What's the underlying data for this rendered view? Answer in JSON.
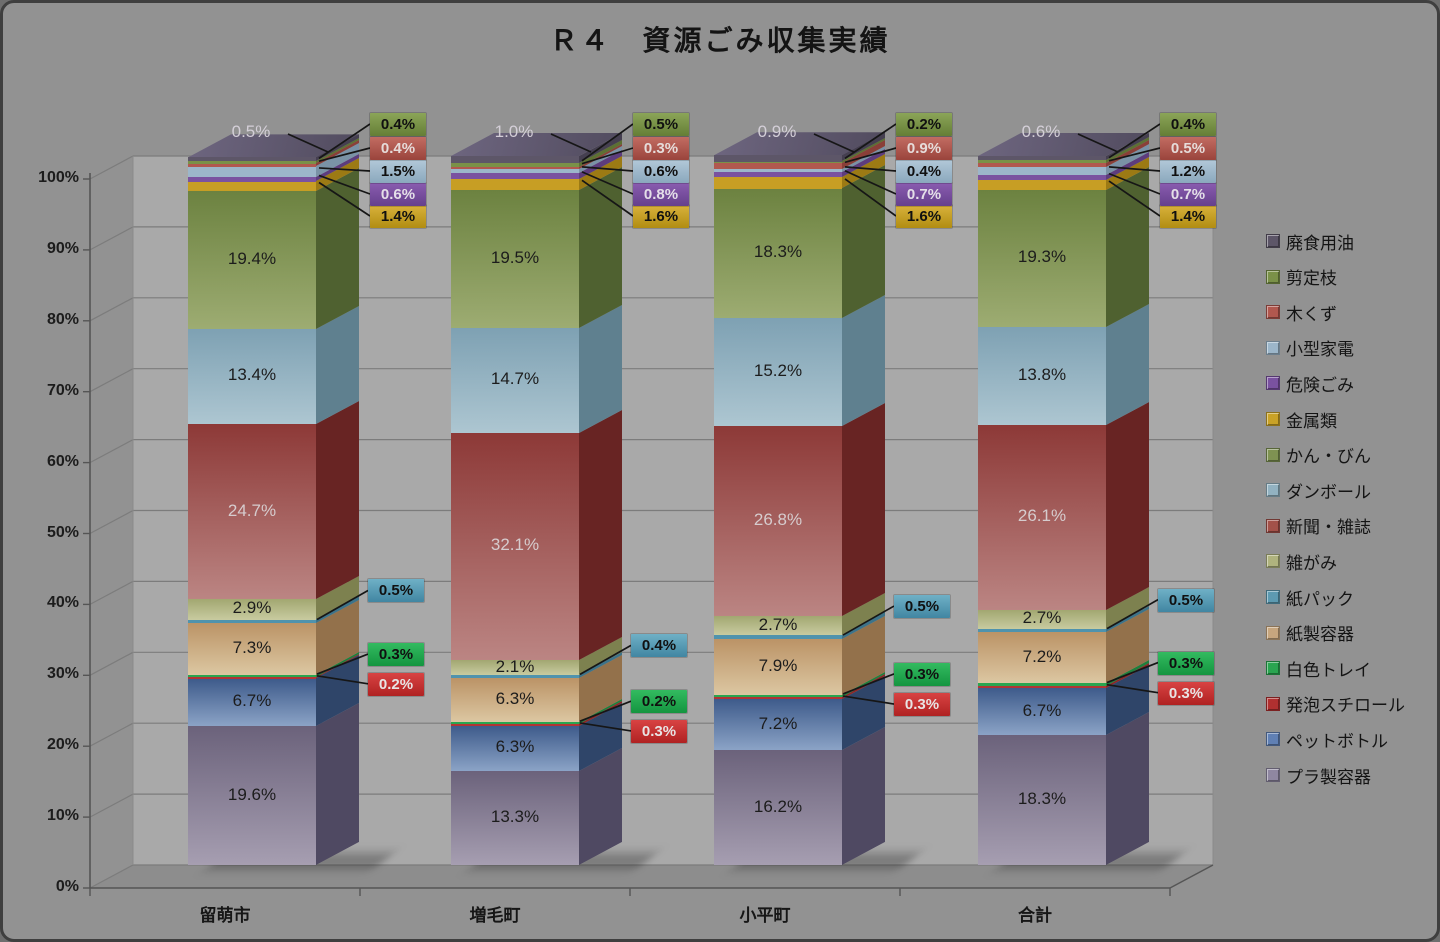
{
  "frame": {
    "background": "#929292",
    "border_color": "#3f3f3f"
  },
  "chart_data": {
    "type": "bar",
    "variant": "3d-100pct-stacked-column",
    "title": "Ｒ４　資源ごみ収集実績",
    "categories": [
      "留萌市",
      "増毛町",
      "小平町",
      "合計"
    ],
    "y_ticks": [
      "0%",
      "10%",
      "20%",
      "30%",
      "40%",
      "50%",
      "60%",
      "70%",
      "80%",
      "90%",
      "100%"
    ],
    "ylim": [
      0,
      100
    ],
    "grid": "on",
    "legend_position": "right",
    "legend_top_to_bottom": [
      "廃食用油",
      "剪定枝",
      "木くず",
      "小型家電",
      "危険ごみ",
      "金属類",
      "かん・びん",
      "ダンボール",
      "新聞・雑誌",
      "雑がみ",
      "紙パック",
      "紙製容器",
      "白色トレイ",
      "発泡スチロール",
      "ペットボトル",
      "プラ製容器"
    ],
    "series_bottom_to_top": [
      {
        "name": "プラ製容器",
        "values": [
          19.6,
          13.3,
          16.2,
          18.3
        ],
        "label_placement": "inside",
        "colors": {
          "front": [
            "#6b627b",
            "#a69eb1"
          ],
          "side": "#4f4962",
          "legend": "#8f87a1"
        }
      },
      {
        "name": "ペットボトル",
        "values": [
          6.7,
          6.3,
          7.2,
          6.7
        ],
        "label_placement": "inside",
        "colors": {
          "front": [
            "#3e5b8b",
            "#8ba3c6"
          ],
          "side": "#2f4569",
          "legend": "#6080b4"
        }
      },
      {
        "name": "発泡スチロール",
        "values": [
          0.2,
          0.3,
          0.3,
          0.3
        ],
        "label_placement": "callout-side",
        "callout_dy": 6,
        "colors": {
          "front": [
            "#b23434",
            "#b23434"
          ],
          "side": "#8c2626",
          "legend": "#b03030",
          "box": [
            "#d84343",
            "#b02222"
          ],
          "box_text": "#e8e4e4"
        }
      },
      {
        "name": "白色トレイ",
        "values": [
          0.3,
          0.2,
          0.3,
          0.3
        ],
        "label_placement": "callout-side",
        "callout_dy": -22,
        "colors": {
          "front": [
            "#2aa550",
            "#2aa550"
          ],
          "side": "#1f7f3c",
          "legend": "#2aa550",
          "box": [
            "#33bb60",
            "#149540"
          ],
          "box_text": "#101010"
        }
      },
      {
        "name": "紙製容器",
        "values": [
          7.3,
          6.3,
          7.9,
          7.2
        ],
        "label_placement": "inside",
        "colors": {
          "front": [
            "#bb9366",
            "#dcc7a2"
          ],
          "side": "#93714b",
          "legend": "#c7a67e"
        }
      },
      {
        "name": "紙パック",
        "values": [
          0.5,
          0.4,
          0.5,
          0.5
        ],
        "label_placement": "callout-side",
        "callout_dy": -31,
        "colors": {
          "front": [
            "#4f93ad",
            "#4f93ad"
          ],
          "side": "#3d7389",
          "legend": "#5d9ab1",
          "box": [
            "#6fb0c6",
            "#4186a2"
          ],
          "box_text": "#101010"
        }
      },
      {
        "name": "雑がみ",
        "values": [
          2.9,
          2.1,
          2.7,
          2.7
        ],
        "label_placement": "inside",
        "colors": {
          "front": [
            "#a2a771",
            "#c8cba0"
          ],
          "side": "#7d814f",
          "legend": "#afb37e"
        }
      },
      {
        "name": "新聞・雑誌",
        "values": [
          24.7,
          32.1,
          26.8,
          26.1
        ],
        "label_placement": "inside",
        "label_color": "#d6ccce",
        "colors": {
          "front": [
            "#8d3937",
            "#bb8583"
          ],
          "side": "#682423",
          "legend": "#a35149"
        }
      },
      {
        "name": "ダンボール",
        "values": [
          13.4,
          14.7,
          15.2,
          13.8
        ],
        "label_placement": "inside",
        "colors": {
          "front": [
            "#7ea1b3",
            "#adc6d1"
          ],
          "side": "#5f808f",
          "legend": "#92b2c1"
        }
      },
      {
        "name": "かん・びん",
        "values": [
          19.4,
          19.5,
          18.3,
          19.3
        ],
        "label_placement": "inside",
        "colors": {
          "front": [
            "#6c8240",
            "#9dac72"
          ],
          "side": "#4f6130",
          "legend": "#7f9252"
        }
      },
      {
        "name": "金属類",
        "values": [
          1.4,
          1.6,
          1.6,
          1.4
        ],
        "label_placement": "callout-top",
        "callout_slot": 4,
        "colors": {
          "front": [
            "#c79e24",
            "#c79e24"
          ],
          "side": "#9c7a14",
          "legend": "#c9a227",
          "box": [
            "#d9b23c",
            "#b18d12"
          ],
          "box_text": "#101010"
        }
      },
      {
        "name": "危険ごみ",
        "values": [
          0.6,
          0.8,
          0.7,
          0.7
        ],
        "label_placement": "callout-top",
        "callout_slot": 3,
        "colors": {
          "front": [
            "#7a52a0",
            "#7a52a0"
          ],
          "side": "#5d3c7d",
          "legend": "#7a52a0",
          "box": [
            "#8a5cb0",
            "#65408c"
          ],
          "box_text": "#e4dfe8"
        }
      },
      {
        "name": "小型家電",
        "values": [
          1.5,
          0.6,
          0.4,
          1.2
        ],
        "label_placement": "callout-top",
        "callout_slot": 2,
        "colors": {
          "front": [
            "#9cb6ca",
            "#9cb6ca"
          ],
          "side": "#7a92a6",
          "legend": "#9cb6ca",
          "box": [
            "#b2c8d8",
            "#8aa8bd"
          ],
          "box_text": "#101010"
        }
      },
      {
        "name": "木くず",
        "values": [
          0.4,
          0.3,
          0.9,
          0.5
        ],
        "label_placement": "callout-top",
        "callout_slot": 1,
        "colors": {
          "front": [
            "#b1584f",
            "#b1584f"
          ],
          "side": "#8a3f38",
          "legend": "#b1584f",
          "box": [
            "#c26c62",
            "#9a443c"
          ],
          "box_text": "#e6dcda"
        }
      },
      {
        "name": "剪定枝",
        "values": [
          0.4,
          0.5,
          0.2,
          0.4
        ],
        "label_placement": "callout-top",
        "callout_slot": 0,
        "colors": {
          "front": [
            "#7a9148",
            "#7a9148"
          ],
          "side": "#5d7033",
          "legend": "#7a9148",
          "box": [
            "#8ba558",
            "#657e36"
          ],
          "box_text": "#101010"
        }
      },
      {
        "name": "廃食用油",
        "values": [
          0.5,
          1.0,
          0.9,
          0.6
        ],
        "label_placement": "top-face",
        "label_color": "#d4cfd8",
        "colors": {
          "front": [
            "#5d5668",
            "#5d5668"
          ],
          "side": "#453f50",
          "legend": "#5d5668",
          "topface": [
            "#6e6680",
            "#514b5e"
          ]
        }
      }
    ]
  }
}
